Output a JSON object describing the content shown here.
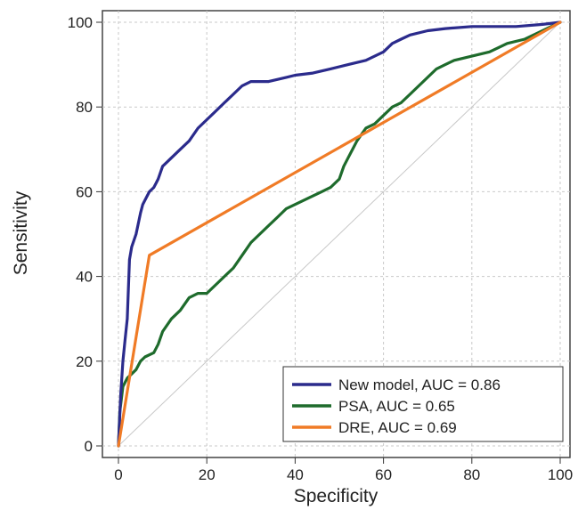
{
  "chart_data": {
    "type": "line",
    "title": "",
    "xlabel": "Specificity",
    "ylabel": "Sensitivity",
    "xlim": [
      0,
      100
    ],
    "ylim": [
      0,
      100
    ],
    "xticks": [
      0,
      20,
      40,
      60,
      80,
      100
    ],
    "yticks": [
      0,
      20,
      40,
      60,
      80,
      100
    ],
    "grid": true,
    "legend_position": "bottom-right",
    "reference_line": {
      "x": [
        0,
        100
      ],
      "y": [
        0,
        100
      ],
      "color": "#c8c8c8"
    },
    "series": [
      {
        "name": "New model, AUC = 0.86",
        "color": "#2b2b8c",
        "x": [
          0,
          0.5,
          1,
          1.5,
          2,
          2.5,
          3,
          4,
          5,
          5.5,
          6,
          7,
          8,
          8.5,
          9,
          10,
          11,
          12,
          14,
          16,
          18,
          20,
          22,
          24,
          26,
          28,
          30,
          34,
          38,
          40,
          44,
          48,
          52,
          56,
          58,
          60,
          62,
          64,
          66,
          70,
          74,
          80,
          90,
          96,
          100
        ],
        "y": [
          0,
          12,
          20,
          25,
          30,
          44,
          47,
          50,
          55,
          57,
          58,
          60,
          61,
          62,
          63,
          66,
          67,
          68,
          70,
          72,
          75,
          77,
          79,
          81,
          83,
          85,
          86,
          86,
          87,
          87.5,
          88,
          89,
          90,
          91,
          92,
          93,
          95,
          96,
          97,
          98,
          98.5,
          99,
          99,
          99.5,
          100
        ]
      },
      {
        "name": "PSA, AUC = 0.65",
        "color": "#1e6b2c",
        "x": [
          0,
          0.3,
          1,
          2,
          3,
          4,
          5,
          6,
          8,
          9,
          10,
          12,
          14,
          16,
          18,
          20,
          22,
          24,
          26,
          28,
          30,
          32,
          34,
          36,
          38,
          40,
          42,
          44,
          46,
          48,
          50,
          51,
          52,
          53,
          54,
          56,
          58,
          60,
          62,
          64,
          66,
          68,
          70,
          72,
          74,
          76,
          80,
          84,
          86,
          88,
          92,
          96,
          100
        ],
        "y": [
          0,
          8,
          14,
          16,
          17,
          18,
          20,
          21,
          22,
          24,
          27,
          30,
          32,
          35,
          36,
          36,
          38,
          40,
          42,
          45,
          48,
          50,
          52,
          54,
          56,
          57,
          58,
          59,
          60,
          61,
          63,
          66,
          68,
          70,
          72,
          75,
          76,
          78,
          80,
          81,
          83,
          85,
          87,
          89,
          90,
          91,
          92,
          93,
          94,
          95,
          96,
          98,
          100
        ]
      },
      {
        "name": "DRE, AUC = 0.69",
        "color": "#f07b26",
        "x": [
          0,
          7,
          100
        ],
        "y": [
          0,
          45,
          100
        ]
      }
    ]
  }
}
